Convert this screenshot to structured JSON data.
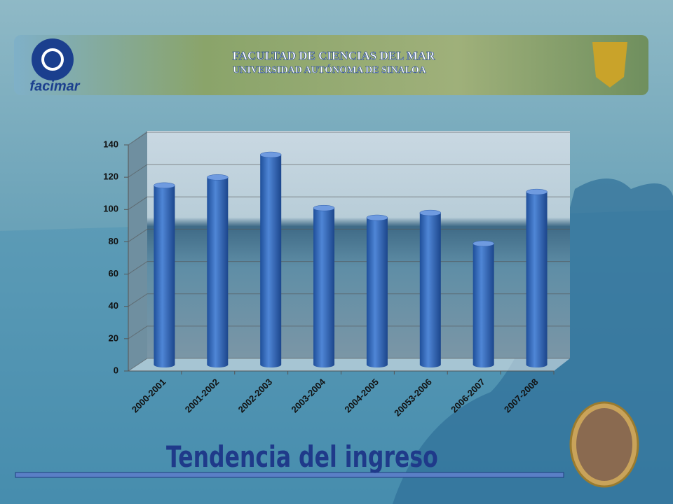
{
  "header": {
    "title": "FACULTAD DE CIENCIAS DEL MAR",
    "subtitle": "UNIVERSIDAD AUTÓNOMA DE SINALOA",
    "logo": "facimar"
  },
  "chart_data": {
    "type": "bar",
    "title": "Tendencia del ingreso",
    "categories": [
      "2000-2001",
      "2001-2002",
      "2002-2003",
      "2003-2004",
      "2004-2005",
      "20053-2006",
      "2006-2007",
      "2007-2008"
    ],
    "values": [
      111,
      116,
      130,
      97,
      91,
      94,
      75,
      107
    ],
    "color": "#3a6fc4",
    "ylim": [
      0,
      140
    ],
    "yticks": [
      0,
      20,
      40,
      60,
      80,
      100,
      120,
      140
    ],
    "grid": true
  }
}
